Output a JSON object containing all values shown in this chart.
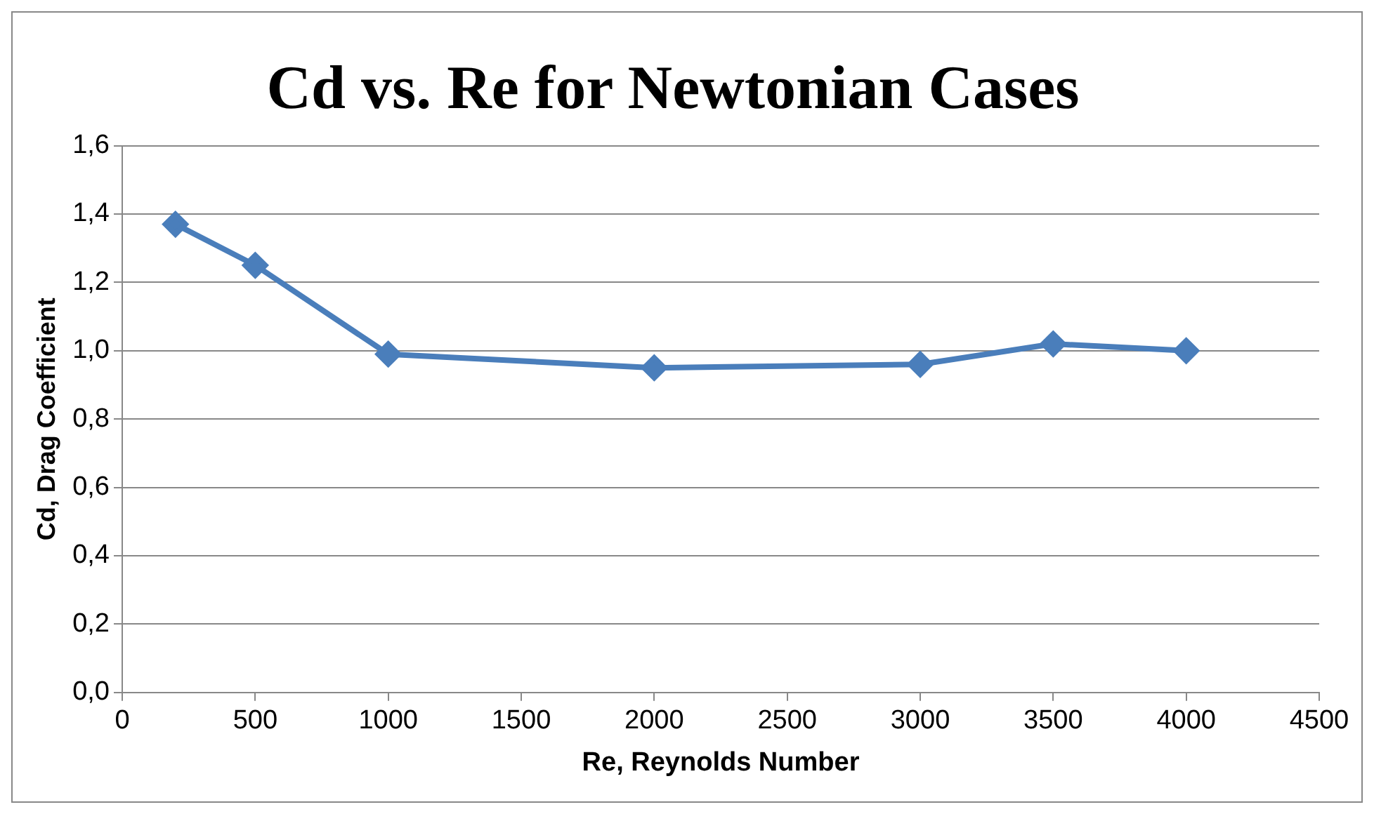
{
  "chart_data": {
    "type": "line",
    "title": "Cd vs. Re for Newtonian Cases",
    "xlabel": "Re, Reynolds Number",
    "ylabel": "Cd, Drag Coefficient",
    "x": [
      200,
      500,
      1000,
      2000,
      3000,
      3500,
      4000
    ],
    "series": [
      {
        "color": "#4a7ebb",
        "values": [
          1.37,
          1.25,
          0.99,
          0.95,
          0.96,
          1.02,
          1.0
        ]
      }
    ],
    "xlim": [
      0,
      4500
    ],
    "xticks": [
      0,
      500,
      1000,
      1500,
      2000,
      2500,
      3000,
      3500,
      4000,
      4500
    ],
    "ylim": [
      0,
      1.6
    ],
    "yticks": [
      {
        "value": 0,
        "label": "0,0"
      },
      {
        "value": 0.2,
        "label": "0,2"
      },
      {
        "value": 0.4,
        "label": "0,4"
      },
      {
        "value": 0.6,
        "label": "0,6"
      },
      {
        "value": 0.8,
        "label": "0,8"
      },
      {
        "value": 1.0,
        "label": "1,0"
      },
      {
        "value": 1.2,
        "label": "1,2"
      },
      {
        "value": 1.4,
        "label": "1,4"
      },
      {
        "value": 1.6,
        "label": "1,6"
      }
    ],
    "grid": "y",
    "legend": false,
    "marker": "diamond",
    "line_style": "solid"
  }
}
